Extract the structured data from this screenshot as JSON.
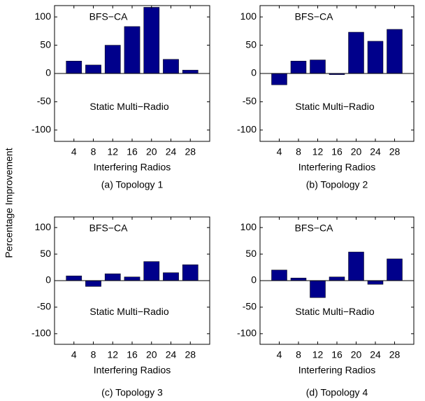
{
  "ylabel": "Percentage Improvement",
  "chart_data": [
    {
      "type": "bar",
      "caption": "(a) Topology 1",
      "xlabel": "Interfering Radios",
      "annotations": [
        "BFS−CA",
        "Static Multi−Radio"
      ],
      "categories": [
        "4",
        "8",
        "12",
        "16",
        "20",
        "24",
        "28"
      ],
      "values": [
        22,
        15,
        50,
        83,
        117,
        25,
        6
      ],
      "color": "#00008b",
      "ylim": [
        -120,
        120
      ],
      "yticks": [
        -100,
        -50,
        0,
        50,
        100
      ]
    },
    {
      "type": "bar",
      "caption": "(b) Topology 2",
      "xlabel": "Interfering Radios",
      "annotations": [
        "BFS−CA",
        "Static Multi−Radio"
      ],
      "categories": [
        "4",
        "8",
        "12",
        "16",
        "20",
        "24",
        "28"
      ],
      "values": [
        -20,
        22,
        24,
        -2,
        73,
        57,
        78
      ],
      "color": "#00008b",
      "ylim": [
        -120,
        120
      ],
      "yticks": [
        -100,
        -50,
        0,
        50,
        100
      ]
    },
    {
      "type": "bar",
      "caption": "(c) Topology 3",
      "xlabel": "Interfering Radios",
      "annotations": [
        "BFS−CA",
        "Static Multi−Radio"
      ],
      "categories": [
        "4",
        "8",
        "12",
        "16",
        "20",
        "24",
        "28"
      ],
      "values": [
        9,
        -11,
        13,
        7,
        36,
        15,
        30
      ],
      "color": "#00008b",
      "ylim": [
        -120,
        120
      ],
      "yticks": [
        -100,
        -50,
        0,
        50,
        100
      ]
    },
    {
      "type": "bar",
      "caption": "(d) Topology 4",
      "xlabel": "Interfering Radios",
      "annotations": [
        "BFS−CA",
        "Static Multi−Radio"
      ],
      "categories": [
        "4",
        "8",
        "12",
        "16",
        "20",
        "24",
        "28"
      ],
      "values": [
        20,
        5,
        -32,
        7,
        54,
        -7,
        41
      ],
      "color": "#00008b",
      "ylim": [
        -120,
        120
      ],
      "yticks": [
        -100,
        -50,
        0,
        50,
        100
      ]
    }
  ]
}
